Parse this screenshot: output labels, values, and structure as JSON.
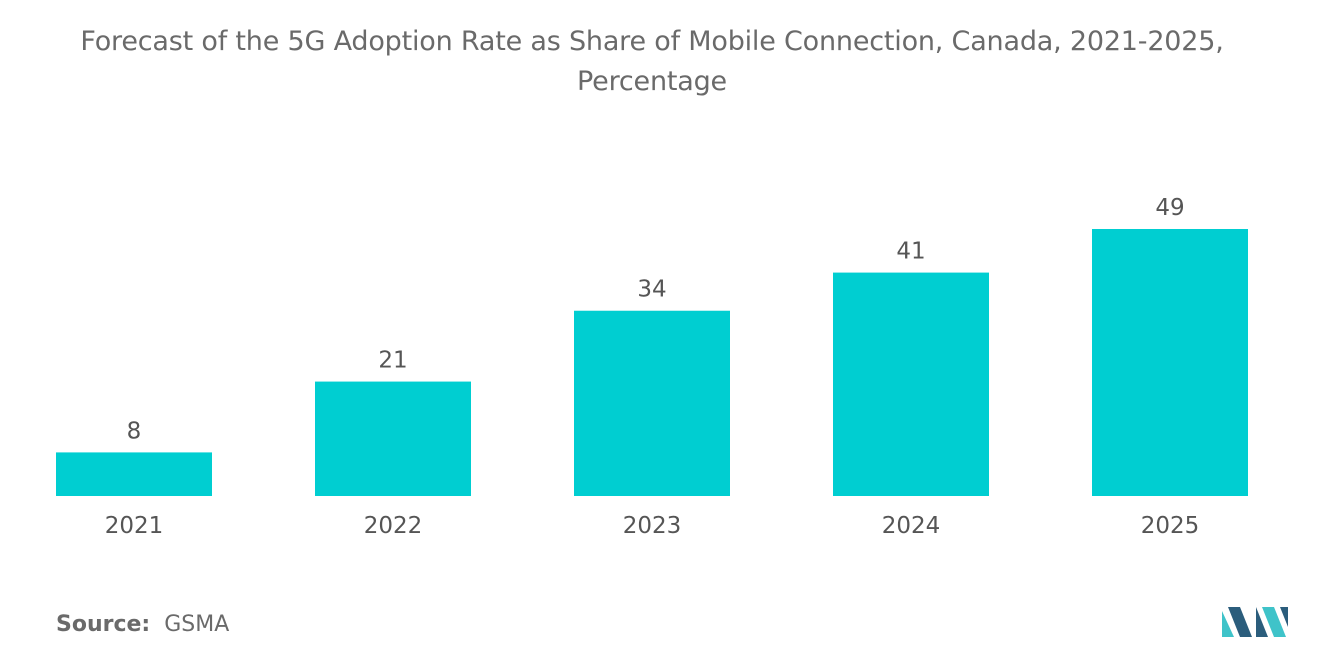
{
  "title": {
    "line1": "Forecast of the 5G Adoption Rate as Share of Mobile Connection, Canada, 2021-2025,",
    "line2": "Percentage"
  },
  "source": {
    "label": "Source:",
    "value": "GSMA"
  },
  "logo": {
    "name": "mordor-intelligence-logo"
  },
  "colors": {
    "bar": "#00CED1",
    "text": "#555555",
    "title": "#6a6a6a",
    "logo_dark": "#2b5d7c",
    "logo_light": "#3fc3c9"
  },
  "chart_data": {
    "type": "bar",
    "title": "Forecast of the 5G Adoption Rate as Share of Mobile Connection, Canada, 2021-2025, Percentage",
    "categories": [
      "2021",
      "2022",
      "2023",
      "2024",
      "2025"
    ],
    "values": [
      8,
      21,
      34,
      41,
      49
    ],
    "xlabel": "",
    "ylabel": "",
    "ylim": [
      0,
      49
    ],
    "grid": false,
    "legend": "none",
    "data_labels": true
  }
}
